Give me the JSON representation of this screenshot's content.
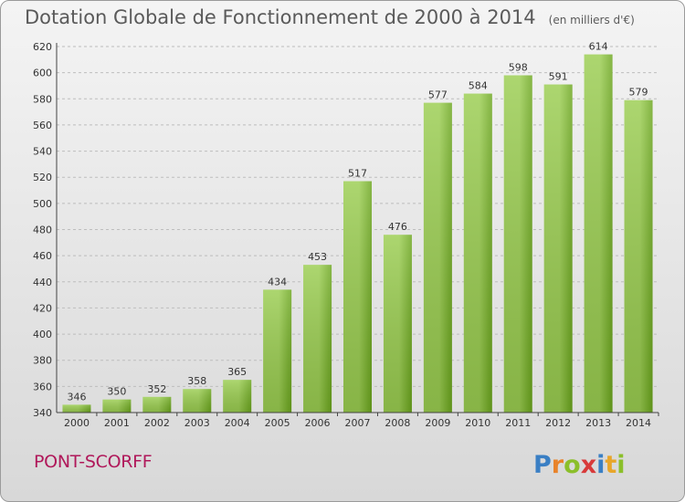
{
  "header": {
    "title": "Dotation Globale de Fonctionnement de 2000 à 2014",
    "unit": "(en milliers d'€)"
  },
  "footer": {
    "commune": "PONT-SCORFF",
    "logo_text": "Proxiti"
  },
  "colors": {
    "bar_light": "#9acd50",
    "bar_dark": "#6aa51c",
    "title": "#5a5a5a",
    "commune": "#b0185a"
  },
  "chart_data": {
    "type": "bar",
    "categories": [
      "2000",
      "2001",
      "2002",
      "2003",
      "2004",
      "2005",
      "2006",
      "2007",
      "2008",
      "2009",
      "2010",
      "2011",
      "2012",
      "2013",
      "2014"
    ],
    "values": [
      346,
      350,
      352,
      358,
      365,
      434,
      453,
      517,
      476,
      577,
      584,
      598,
      591,
      614,
      579
    ],
    "ylim": [
      340,
      620
    ],
    "yticks": [
      340,
      360,
      380,
      400,
      420,
      440,
      460,
      480,
      500,
      520,
      540,
      560,
      580,
      600,
      620
    ],
    "grid": "horizontal dashed",
    "xlabel": "",
    "ylabel": ""
  }
}
